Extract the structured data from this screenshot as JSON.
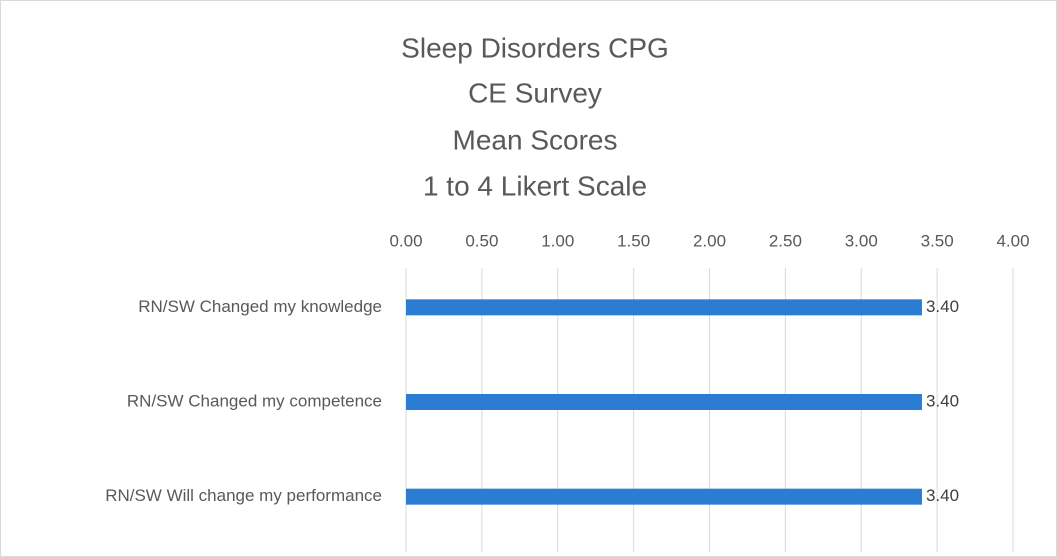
{
  "chart_data": {
    "type": "bar",
    "orientation": "horizontal",
    "title": [
      "Sleep Disorders CPG",
      "CE Survey",
      "Mean Scores",
      "1 to 4 Likert Scale"
    ],
    "categories": [
      "RN/SW Changed my knowledge",
      "RN/SW Changed my competence",
      "RN/SW Will change my performance"
    ],
    "values": [
      3.4,
      3.4,
      3.4
    ],
    "value_labels": [
      "3.40",
      "3.40",
      "3.40"
    ],
    "color": "#2b7cd3",
    "xlim": [
      0,
      4
    ],
    "xticks": [
      {
        "value": 0,
        "label": "0.00"
      },
      {
        "value": 0.5,
        "label": "0.50"
      },
      {
        "value": 1,
        "label": "1.00"
      },
      {
        "value": 1.5,
        "label": "1.50"
      },
      {
        "value": 2,
        "label": "2.00"
      },
      {
        "value": 2.5,
        "label": "2.50"
      },
      {
        "value": 3,
        "label": "3.00"
      },
      {
        "value": 3.5,
        "label": "3.50"
      },
      {
        "value": 4,
        "label": "4.00"
      }
    ],
    "grid": true
  }
}
